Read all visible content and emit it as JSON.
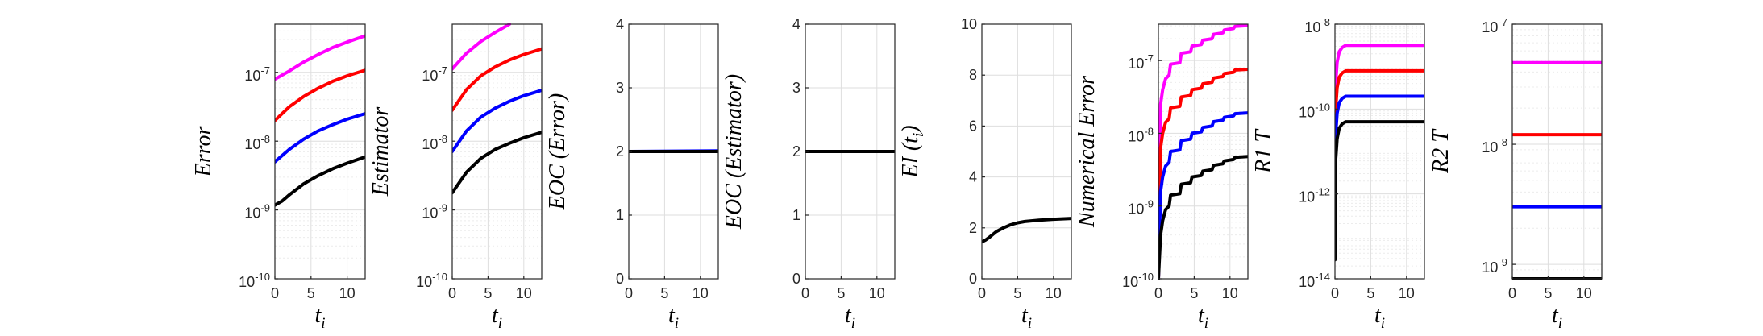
{
  "chart_data": [
    {
      "type": "line",
      "xlabel": "t_i",
      "xlabel_parts": {
        "main": "t",
        "sub": "i"
      },
      "ylabel": "Error",
      "xlim": [
        0,
        12.5
      ],
      "xticks": [
        0,
        5,
        10
      ],
      "xticklabels": [
        "0",
        "5",
        "10"
      ],
      "yscale": "log",
      "ylim_exp": [
        -10,
        -6.3
      ],
      "yticks_exp": [
        -10,
        -9,
        -8,
        -7
      ],
      "yticklabels": [
        "10^-10",
        "10^-9",
        "10^-8",
        "10^-7"
      ],
      "grid": true,
      "series": [
        {
          "color": "#ff00ff",
          "x": [
            0,
            2,
            4,
            6,
            8,
            10,
            12.5
          ],
          "y_exp": [
            -7.1,
            -6.98,
            -6.85,
            -6.74,
            -6.64,
            -6.56,
            -6.47
          ]
        },
        {
          "color": "#ff0000",
          "x": [
            0,
            2,
            4,
            6,
            8,
            10,
            12.5
          ],
          "y_exp": [
            -7.7,
            -7.5,
            -7.35,
            -7.23,
            -7.13,
            -7.05,
            -6.97
          ]
        },
        {
          "color": "#0000ff",
          "x": [
            0,
            2,
            4,
            6,
            8,
            10,
            12.5
          ],
          "y_exp": [
            -8.3,
            -8.12,
            -7.97,
            -7.85,
            -7.76,
            -7.68,
            -7.6
          ]
        },
        {
          "color": "#000000",
          "x": [
            0,
            1,
            2,
            4,
            6,
            8,
            10,
            12.5
          ],
          "y_exp": [
            -8.93,
            -8.87,
            -8.78,
            -8.62,
            -8.5,
            -8.4,
            -8.32,
            -8.23
          ]
        }
      ]
    },
    {
      "type": "line",
      "xlabel": "t_i",
      "xlabel_parts": {
        "main": "t",
        "sub": "i"
      },
      "ylabel": "Estimator",
      "xlim": [
        0,
        12.5
      ],
      "xticks": [
        0,
        5,
        10
      ],
      "xticklabels": [
        "0",
        "5",
        "10"
      ],
      "yscale": "log",
      "ylim_exp": [
        -10,
        -6.3
      ],
      "yticks_exp": [
        -10,
        -9,
        -8,
        -7
      ],
      "yticklabels": [
        "10^-10",
        "10^-9",
        "10^-8",
        "10^-7"
      ],
      "grid": true,
      "series": [
        {
          "color": "#ff00ff",
          "x": [
            0,
            2,
            4,
            6,
            8
          ],
          "y_exp": [
            -6.95,
            -6.72,
            -6.55,
            -6.42,
            -6.3
          ]
        },
        {
          "color": "#ff0000",
          "x": [
            0,
            1,
            2,
            4,
            6,
            8,
            10,
            12.5
          ],
          "y_exp": [
            -7.55,
            -7.4,
            -7.25,
            -7.05,
            -6.92,
            -6.82,
            -6.74,
            -6.66
          ]
        },
        {
          "color": "#0000ff",
          "x": [
            0,
            1,
            2,
            4,
            6,
            8,
            10,
            12.5
          ],
          "y_exp": [
            -8.15,
            -8.0,
            -7.85,
            -7.65,
            -7.52,
            -7.42,
            -7.34,
            -7.26
          ]
        },
        {
          "color": "#000000",
          "x": [
            0,
            1,
            2,
            4,
            6,
            8,
            10,
            12.5
          ],
          "y_exp": [
            -8.75,
            -8.6,
            -8.45,
            -8.25,
            -8.12,
            -8.03,
            -7.95,
            -7.87
          ]
        }
      ]
    },
    {
      "type": "line",
      "xlabel": "t_i",
      "xlabel_parts": {
        "main": "t",
        "sub": "i"
      },
      "ylabel": "EOC (Error)",
      "xlim": [
        0,
        12.5
      ],
      "xticks": [
        0,
        5,
        10
      ],
      "xticklabels": [
        "0",
        "5",
        "10"
      ],
      "yscale": "linear",
      "ylim": [
        0,
        4
      ],
      "yticks": [
        0,
        1,
        2,
        3,
        4
      ],
      "yticklabels": [
        "0",
        "1",
        "2",
        "3",
        "4"
      ],
      "grid": true,
      "series": [
        {
          "color": "#ff0000",
          "x": [
            0,
            12.5
          ],
          "y": [
            2.0,
            2.0
          ]
        },
        {
          "color": "#0000ff",
          "x": [
            0,
            12.5
          ],
          "y": [
            2.0,
            2.01
          ]
        },
        {
          "color": "#000000",
          "x": [
            0,
            12.5
          ],
          "y": [
            2.0,
            2.0
          ]
        }
      ]
    },
    {
      "type": "line",
      "xlabel": "t_i",
      "xlabel_parts": {
        "main": "t",
        "sub": "i"
      },
      "ylabel": "EOC (Estimator)",
      "xlim": [
        0,
        12.5
      ],
      "xticks": [
        0,
        5,
        10
      ],
      "xticklabels": [
        "0",
        "5",
        "10"
      ],
      "yscale": "linear",
      "ylim": [
        0,
        4
      ],
      "yticks": [
        0,
        1,
        2,
        3,
        4
      ],
      "yticklabels": [
        "0",
        "1",
        "2",
        "3",
        "4"
      ],
      "grid": true,
      "series": [
        {
          "color": "#0000ff",
          "x": [
            0,
            12.5
          ],
          "y": [
            2.0,
            2.0
          ]
        },
        {
          "color": "#000000",
          "x": [
            0,
            12.5
          ],
          "y": [
            2.0,
            2.0
          ]
        }
      ]
    },
    {
      "type": "line",
      "xlabel": "t_i",
      "xlabel_parts": {
        "main": "t",
        "sub": "i"
      },
      "ylabel": "EI (t_i)",
      "ylabel_parts": {
        "main": "EI (t",
        "sub": "i",
        "end": ")"
      },
      "xlim": [
        0,
        12.5
      ],
      "xticks": [
        0,
        5,
        10
      ],
      "xticklabels": [
        "0",
        "5",
        "10"
      ],
      "yscale": "linear",
      "ylim": [
        0,
        10
      ],
      "yticks": [
        0,
        2,
        4,
        6,
        8,
        10
      ],
      "yticklabels": [
        "0",
        "2",
        "4",
        "6",
        "8",
        "10"
      ],
      "grid": true,
      "series": [
        {
          "color": "#000000",
          "x": [
            0,
            0.5,
            1,
            2,
            3,
            4,
            5,
            6,
            8,
            10,
            12.5
          ],
          "y": [
            1.45,
            1.52,
            1.62,
            1.85,
            2.0,
            2.12,
            2.2,
            2.25,
            2.3,
            2.34,
            2.37
          ]
        }
      ]
    },
    {
      "type": "line",
      "xlabel": "t_i",
      "xlabel_parts": {
        "main": "t",
        "sub": "i"
      },
      "ylabel": "Numerical Error",
      "xlim": [
        0,
        12.5
      ],
      "xticks": [
        0,
        5,
        10
      ],
      "xticklabels": [
        "0",
        "5",
        "10"
      ],
      "yscale": "log",
      "ylim_exp": [
        -10,
        -6.5
      ],
      "yticks_exp": [
        -10,
        -9,
        -8,
        -7
      ],
      "yticklabels": [
        "10^-10",
        "10^-9",
        "10^-8",
        "10^-7"
      ],
      "grid": true,
      "series": [
        {
          "color": "#ff00ff",
          "x": [
            0,
            0.3,
            0.6,
            1,
            1.5,
            1.7,
            3,
            3.2,
            4.5,
            4.7,
            6,
            6.2,
            7.5,
            7.7,
            9,
            9.2,
            10.5,
            10.7,
            12.5
          ],
          "y_exp": [
            -10,
            -7.6,
            -7.4,
            -7.25,
            -7.2,
            -7.05,
            -7.03,
            -6.9,
            -6.88,
            -6.8,
            -6.78,
            -6.72,
            -6.7,
            -6.64,
            -6.62,
            -6.58,
            -6.56,
            -6.53,
            -6.52
          ]
        },
        {
          "color": "#ff0000",
          "x": [
            0,
            0.3,
            0.6,
            1,
            1.5,
            1.7,
            3,
            3.2,
            4.5,
            4.7,
            6,
            6.2,
            7.5,
            7.7,
            9,
            9.2,
            10.5,
            10.7,
            12.5
          ],
          "y_exp": [
            -10,
            -8.2,
            -8.0,
            -7.85,
            -7.8,
            -7.65,
            -7.63,
            -7.5,
            -7.48,
            -7.4,
            -7.38,
            -7.32,
            -7.3,
            -7.24,
            -7.22,
            -7.18,
            -7.16,
            -7.13,
            -7.12
          ]
        },
        {
          "color": "#0000ff",
          "x": [
            0,
            0.3,
            0.6,
            1,
            1.5,
            1.7,
            3,
            3.2,
            4.5,
            4.7,
            6,
            6.2,
            7.5,
            7.7,
            9,
            9.2,
            10.5,
            10.7,
            12.5
          ],
          "y_exp": [
            -10,
            -8.8,
            -8.6,
            -8.45,
            -8.4,
            -8.25,
            -8.23,
            -8.1,
            -8.08,
            -8.0,
            -7.98,
            -7.92,
            -7.9,
            -7.84,
            -7.82,
            -7.78,
            -7.76,
            -7.73,
            -7.72
          ]
        },
        {
          "color": "#000000",
          "x": [
            0,
            0.3,
            0.6,
            1,
            1.5,
            1.7,
            3,
            3.2,
            4.5,
            4.7,
            6,
            6.2,
            7.5,
            7.7,
            9,
            9.2,
            10.5,
            10.7,
            12.5
          ],
          "y_exp": [
            -10,
            -9.4,
            -9.2,
            -9.05,
            -9.0,
            -8.85,
            -8.83,
            -8.7,
            -8.68,
            -8.6,
            -8.58,
            -8.52,
            -8.5,
            -8.44,
            -8.42,
            -8.38,
            -8.36,
            -8.33,
            -8.32
          ]
        }
      ]
    },
    {
      "type": "line",
      "xlabel": "t_i",
      "xlabel_parts": {
        "main": "t",
        "sub": "i"
      },
      "ylabel": "R1 T",
      "xlim": [
        0,
        12.5
      ],
      "xticks": [
        0,
        5,
        10
      ],
      "xticklabels": [
        "0",
        "5",
        "10"
      ],
      "yscale": "log",
      "ylim_exp": [
        -14,
        -8
      ],
      "yticks_exp": [
        -14,
        -12,
        -10,
        -8
      ],
      "yticklabels": [
        "10^-14",
        "10^-12",
        "10^-10",
        "10^-8"
      ],
      "grid": true,
      "series": [
        {
          "color": "#ff00ff",
          "x": [
            0,
            0.1,
            0.3,
            0.6,
            1,
            1.5,
            12.5
          ],
          "y_exp": [
            -10.8,
            -9.4,
            -8.9,
            -8.65,
            -8.55,
            -8.5,
            -8.5
          ]
        },
        {
          "color": "#ff0000",
          "x": [
            0,
            0.1,
            0.3,
            0.6,
            1,
            1.5,
            12.5
          ],
          "y_exp": [
            -11.4,
            -10.0,
            -9.5,
            -9.25,
            -9.15,
            -9.1,
            -9.1
          ]
        },
        {
          "color": "#0000ff",
          "x": [
            0,
            0.1,
            0.3,
            0.6,
            1,
            1.5,
            12.5
          ],
          "y_exp": [
            -12.0,
            -10.6,
            -10.1,
            -9.85,
            -9.75,
            -9.7,
            -9.7
          ]
        },
        {
          "color": "#000000",
          "x": [
            0,
            0.1,
            0.3,
            0.6,
            1,
            1.5,
            12.5
          ],
          "y_exp": [
            -13.55,
            -11.2,
            -10.7,
            -10.45,
            -10.35,
            -10.3,
            -10.3
          ]
        }
      ]
    },
    {
      "type": "line",
      "xlabel": "t_i",
      "xlabel_parts": {
        "main": "t",
        "sub": "i"
      },
      "ylabel": "R2 T",
      "xlim": [
        0,
        12.5
      ],
      "xticks": [
        0,
        5,
        10
      ],
      "xticklabels": [
        "0",
        "5",
        "10"
      ],
      "yscale": "log",
      "ylim_exp": [
        -9.12,
        -7
      ],
      "yticks_exp": [
        -9,
        -8,
        -7
      ],
      "yticklabels": [
        "10^-9",
        "10^-8",
        "10^-7"
      ],
      "grid": true,
      "series": [
        {
          "color": "#ff00ff",
          "x": [
            0,
            12.5
          ],
          "y_exp": [
            -7.32,
            -7.32
          ]
        },
        {
          "color": "#ff0000",
          "x": [
            0,
            12.5
          ],
          "y_exp": [
            -7.92,
            -7.92
          ]
        },
        {
          "color": "#0000ff",
          "x": [
            0,
            12.5
          ],
          "y_exp": [
            -8.52,
            -8.52
          ]
        },
        {
          "color": "#000000",
          "x": [
            0,
            12.5
          ],
          "y_exp": [
            -9.12,
            -9.12
          ]
        }
      ]
    }
  ]
}
